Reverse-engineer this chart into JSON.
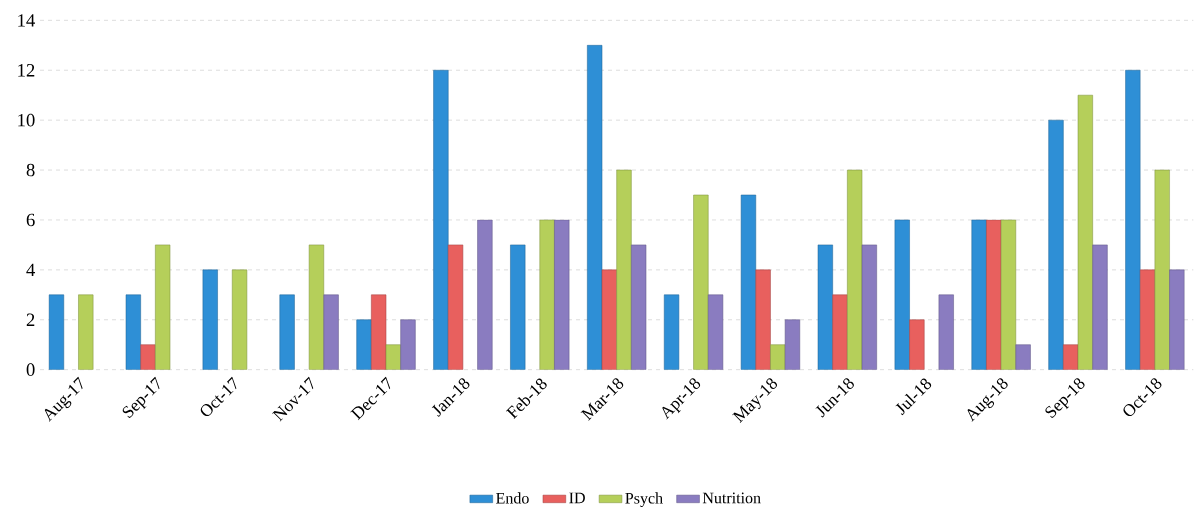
{
  "chart_data": {
    "type": "bar",
    "categories": [
      "Aug-17",
      "Sep-17",
      "Oct-17",
      "Nov-17",
      "Dec-17",
      "Jan-18",
      "Feb-18",
      "Mar-18",
      "Apr-18",
      "May-18",
      "Jun-18",
      "Jul-18",
      "Aug-18",
      "Sep-18",
      "Oct-18"
    ],
    "series": [
      {
        "name": "Endo",
        "color": "#2e8fd6",
        "values": [
          3,
          3,
          4,
          3,
          2,
          12,
          5,
          13,
          3,
          7,
          5,
          6,
          6,
          10,
          12
        ]
      },
      {
        "name": "ID",
        "color": "#e8605e",
        "values": [
          null,
          1,
          null,
          null,
          3,
          5,
          null,
          4,
          null,
          4,
          3,
          2,
          6,
          1,
          4
        ]
      },
      {
        "name": "Psych",
        "color": "#b5cf5a",
        "values": [
          3,
          5,
          4,
          5,
          1,
          null,
          6,
          8,
          7,
          1,
          8,
          null,
          6,
          11,
          8
        ]
      },
      {
        "name": "Nutrition",
        "color": "#8a7cc0",
        "values": [
          null,
          null,
          null,
          3,
          2,
          6,
          6,
          5,
          3,
          2,
          5,
          3,
          1,
          5,
          4
        ]
      }
    ],
    "ylim": [
      0,
      14
    ],
    "yticks": [
      0,
      2,
      4,
      6,
      8,
      10,
      12,
      14
    ],
    "grid": "y",
    "legend": "bottom"
  }
}
